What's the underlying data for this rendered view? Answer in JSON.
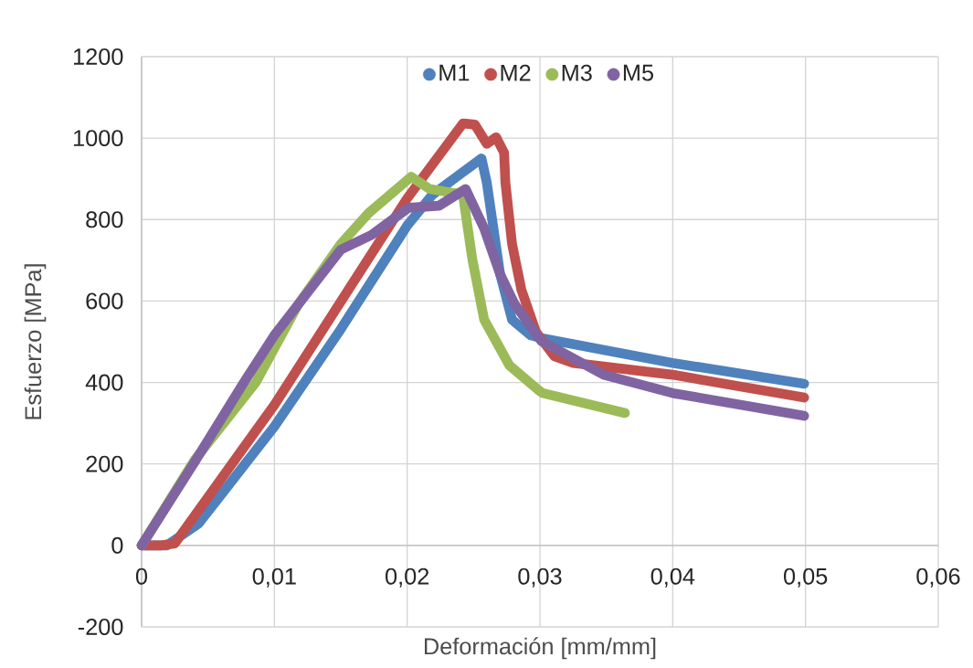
{
  "chart_data": {
    "type": "line",
    "xlabel": "Deformación [mm/mm]",
    "ylabel": "Esfuerzo [MPa]",
    "xlim": [
      0,
      0.06
    ],
    "ylim": [
      -200,
      1200
    ],
    "xticks": [
      0,
      {
        "value": 0.01,
        "label": "0,01"
      },
      {
        "value": 0.02,
        "label": "0,02"
      },
      {
        "value": 0.03,
        "label": "0,03"
      },
      {
        "value": 0.04,
        "label": "0,04"
      },
      {
        "value": 0.05,
        "label": "0,05"
      },
      {
        "value": 0.06,
        "label": "0,06"
      }
    ],
    "yticks": [
      -200,
      0,
      200,
      400,
      600,
      800,
      1000,
      1200
    ],
    "grid": true,
    "legend": "top",
    "marker": "none",
    "line_style": "solid",
    "series": [
      {
        "name": "M1",
        "color": "#4f81bd",
        "x": [
          0,
          0.0019,
          0.0043,
          0.01,
          0.015,
          0.02,
          0.0219,
          0.0256,
          0.026,
          0.027,
          0.0279,
          0.0293,
          0.0301,
          0.04,
          0.0499
        ],
        "values": [
          0,
          0,
          54,
          292,
          531,
          785,
          861,
          950,
          890,
          666,
          554,
          516,
          509,
          448,
          397
        ]
      },
      {
        "name": "M2",
        "color": "#c0504d",
        "x": [
          0,
          0.0015,
          0.0025,
          0.01,
          0.02,
          0.0242,
          0.0251,
          0.026,
          0.0267,
          0.0273,
          0.0274,
          0.0279,
          0.0286,
          0.0297,
          0.0311,
          0.0325,
          0.04,
          0.0499
        ],
        "values": [
          0,
          0,
          5,
          345,
          852,
          1036,
          1033,
          986,
          1002,
          964,
          890,
          740,
          628,
          524,
          464,
          448,
          419,
          363
        ]
      },
      {
        "name": "M3",
        "color": "#9bbb59",
        "x": [
          0,
          0.004,
          0.0086,
          0.0118,
          0.015,
          0.0171,
          0.0203,
          0.0217,
          0.0242,
          0.0249,
          0.0258,
          0.0277,
          0.0299,
          0.0302,
          0.0364
        ],
        "values": [
          0,
          210,
          400,
          592,
          740,
          816,
          905,
          875,
          861,
          704,
          554,
          442,
          381,
          374,
          325
        ]
      },
      {
        "name": "M5",
        "color": "#8064a2",
        "x": [
          0,
          0.004,
          0.0077,
          0.01,
          0.015,
          0.0173,
          0.0201,
          0.0224,
          0.0244,
          0.0258,
          0.027,
          0.0281,
          0.0301,
          0.0348,
          0.04,
          0.0499
        ],
        "values": [
          0,
          205,
          400,
          516,
          726,
          762,
          829,
          834,
          875,
          778,
          666,
          592,
          502,
          419,
          374,
          318
        ]
      }
    ]
  }
}
